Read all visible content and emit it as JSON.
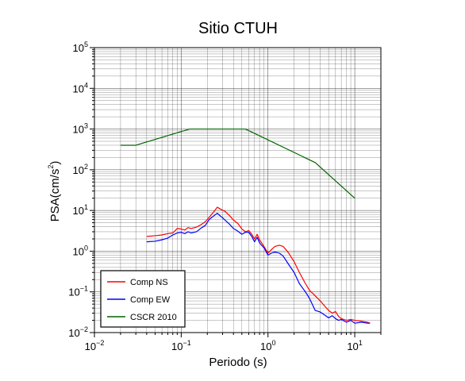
{
  "chart_data": {
    "type": "line",
    "title": "Sitio CTUH",
    "xlabel": "Periodo (s)",
    "ylabel_base": "PSA(cm/s",
    "ylabel_exp": "2",
    "ylabel_close": ")",
    "x_scale": "log",
    "y_scale": "log",
    "xlim": [
      0.01,
      20
    ],
    "ylim": [
      0.01,
      100000
    ],
    "grid": true,
    "x_ticks": [
      {
        "base": "10",
        "exp": "−2",
        "value": 0.01
      },
      {
        "base": "10",
        "exp": "−1",
        "value": 0.1
      },
      {
        "base": "10",
        "exp": "0",
        "value": 1
      },
      {
        "base": "10",
        "exp": "1",
        "value": 10
      }
    ],
    "y_ticks": [
      {
        "base": "10",
        "exp": "−2",
        "value": 0.01
      },
      {
        "base": "10",
        "exp": "−1",
        "value": 0.1
      },
      {
        "base": "10",
        "exp": "0",
        "value": 1
      },
      {
        "base": "10",
        "exp": "1",
        "value": 10
      },
      {
        "base": "10",
        "exp": "2",
        "value": 100
      },
      {
        "base": "10",
        "exp": "3",
        "value": 1000
      },
      {
        "base": "10",
        "exp": "4",
        "value": 10000
      },
      {
        "base": "10",
        "exp": "5",
        "value": 100000
      }
    ],
    "legend_position": "bottom-left",
    "series": [
      {
        "name": "Comp NS",
        "color": "#ff0000",
        "points": [
          [
            0.04,
            2.3
          ],
          [
            0.05,
            2.4
          ],
          [
            0.06,
            2.5
          ],
          [
            0.07,
            2.7
          ],
          [
            0.08,
            2.8
          ],
          [
            0.09,
            3.6
          ],
          [
            0.1,
            3.5
          ],
          [
            0.11,
            3.3
          ],
          [
            0.12,
            3.8
          ],
          [
            0.13,
            3.6
          ],
          [
            0.15,
            3.9
          ],
          [
            0.17,
            4.5
          ],
          [
            0.19,
            5.3
          ],
          [
            0.21,
            6.8
          ],
          [
            0.24,
            9.5
          ],
          [
            0.26,
            12.0
          ],
          [
            0.29,
            10.5
          ],
          [
            0.32,
            9.5
          ],
          [
            0.36,
            7.5
          ],
          [
            0.4,
            5.8
          ],
          [
            0.45,
            4.8
          ],
          [
            0.5,
            3.5
          ],
          [
            0.55,
            3.0
          ],
          [
            0.6,
            3.2
          ],
          [
            0.65,
            2.6
          ],
          [
            0.7,
            2.0
          ],
          [
            0.75,
            2.6
          ],
          [
            0.8,
            1.9
          ],
          [
            0.9,
            1.3
          ],
          [
            1.0,
            0.9
          ],
          [
            1.1,
            1.1
          ],
          [
            1.2,
            1.3
          ],
          [
            1.35,
            1.4
          ],
          [
            1.5,
            1.3
          ],
          [
            1.7,
            0.95
          ],
          [
            2.0,
            0.55
          ],
          [
            2.3,
            0.3
          ],
          [
            2.7,
            0.16
          ],
          [
            3.0,
            0.11
          ],
          [
            3.5,
            0.08
          ],
          [
            4.0,
            0.06
          ],
          [
            4.5,
            0.045
          ],
          [
            5.0,
            0.035
          ],
          [
            5.5,
            0.03
          ],
          [
            6.0,
            0.033
          ],
          [
            6.5,
            0.025
          ],
          [
            7.0,
            0.022
          ],
          [
            8.0,
            0.02
          ],
          [
            9.0,
            0.021
          ],
          [
            10.0,
            0.02
          ],
          [
            12.0,
            0.019
          ],
          [
            14.0,
            0.018
          ],
          [
            15.0,
            0.017
          ]
        ]
      },
      {
        "name": "Comp EW",
        "color": "#0000ff",
        "points": [
          [
            0.04,
            1.7
          ],
          [
            0.05,
            1.75
          ],
          [
            0.06,
            1.9
          ],
          [
            0.07,
            2.1
          ],
          [
            0.08,
            2.5
          ],
          [
            0.09,
            2.8
          ],
          [
            0.1,
            2.9
          ],
          [
            0.11,
            2.7
          ],
          [
            0.12,
            3.0
          ],
          [
            0.13,
            2.8
          ],
          [
            0.15,
            3.0
          ],
          [
            0.17,
            3.7
          ],
          [
            0.19,
            4.3
          ],
          [
            0.21,
            6.0
          ],
          [
            0.24,
            7.5
          ],
          [
            0.26,
            8.5
          ],
          [
            0.29,
            7.0
          ],
          [
            0.32,
            5.8
          ],
          [
            0.36,
            4.6
          ],
          [
            0.4,
            3.6
          ],
          [
            0.45,
            3.1
          ],
          [
            0.5,
            2.6
          ],
          [
            0.55,
            2.9
          ],
          [
            0.6,
            2.9
          ],
          [
            0.65,
            2.3
          ],
          [
            0.7,
            1.7
          ],
          [
            0.75,
            2.2
          ],
          [
            0.8,
            1.6
          ],
          [
            0.9,
            1.2
          ],
          [
            1.0,
            0.8
          ],
          [
            1.1,
            0.9
          ],
          [
            1.2,
            0.95
          ],
          [
            1.35,
            0.9
          ],
          [
            1.5,
            0.75
          ],
          [
            1.7,
            0.5
          ],
          [
            2.0,
            0.3
          ],
          [
            2.3,
            0.16
          ],
          [
            2.7,
            0.1
          ],
          [
            3.0,
            0.07
          ],
          [
            3.5,
            0.035
          ],
          [
            4.0,
            0.032
          ],
          [
            4.5,
            0.027
          ],
          [
            5.0,
            0.023
          ],
          [
            5.5,
            0.026
          ],
          [
            6.0,
            0.022
          ],
          [
            6.5,
            0.02
          ],
          [
            7.0,
            0.021
          ],
          [
            8.0,
            0.018
          ],
          [
            9.0,
            0.02
          ],
          [
            10.0,
            0.017
          ],
          [
            12.0,
            0.018
          ],
          [
            14.0,
            0.017
          ],
          [
            15.0,
            0.017
          ]
        ]
      },
      {
        "name": "CSCR 2010",
        "color": "#006400",
        "points": [
          [
            0.02,
            400
          ],
          [
            0.03,
            400
          ],
          [
            0.125,
            1000
          ],
          [
            0.55,
            1000
          ],
          [
            3.5,
            150
          ],
          [
            10.0,
            20
          ]
        ]
      }
    ]
  }
}
